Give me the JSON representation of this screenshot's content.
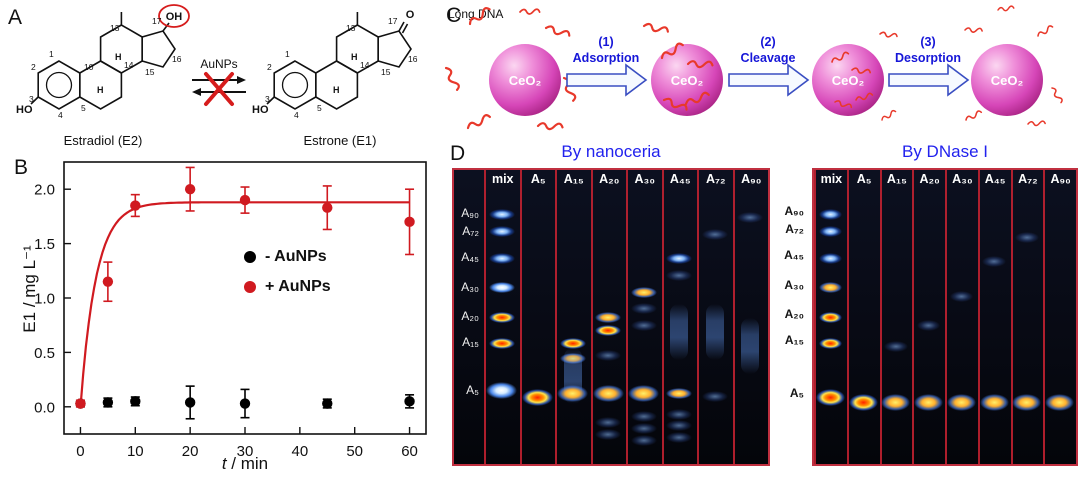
{
  "panel_a": {
    "label": "A",
    "arrow_label": "AuNPs",
    "h": "H",
    "numbers": {
      "n1": "1",
      "n2": "2",
      "n3": "3",
      "n4": "4",
      "n5": "5",
      "n10": "10",
      "n13": "13",
      "n14": "14",
      "n15": "15",
      "n16": "16",
      "n17": "17"
    },
    "left": {
      "name": "Estradiol (E2)",
      "ho": "HO",
      "oh": "OH"
    },
    "right": {
      "name": "Estrone (E1)",
      "ho": "HO",
      "o": "O"
    }
  },
  "panel_b": {
    "label": "B"
  },
  "chart_data": {
    "type": "scatter",
    "xlabel_italic": "t",
    "xlabel_rest": " / min",
    "ylabel": "E1 / mg L⁻¹",
    "xlim": [
      -3,
      63
    ],
    "ylim": [
      -0.25,
      2.25
    ],
    "xticks": [
      0,
      10,
      20,
      30,
      40,
      50,
      60
    ],
    "yticks": [
      0,
      0.5,
      1,
      1.5,
      2
    ],
    "grid": false,
    "legend_position": "middle-right",
    "series": [
      {
        "name": "- AuNPs",
        "color": "#000000",
        "x": [
          0,
          5,
          10,
          20,
          30,
          45,
          60
        ],
        "y": [
          0.03,
          0.04,
          0.05,
          0.04,
          0.03,
          0.03,
          0.05
        ],
        "yerr": [
          0.03,
          0.04,
          0.04,
          0.15,
          0.13,
          0.04,
          0.06
        ]
      },
      {
        "name": "+ AuNPs",
        "color": "#d01a20",
        "x": [
          0,
          5,
          10,
          20,
          30,
          45,
          60
        ],
        "y": [
          0.03,
          1.15,
          1.85,
          2.0,
          1.9,
          1.83,
          1.7
        ],
        "yerr": [
          0.03,
          0.18,
          0.1,
          0.2,
          0.12,
          0.2,
          0.3
        ]
      }
    ],
    "fit_curve": {
      "series": "+ AuNPs",
      "plateau": 1.88,
      "rate": 0.35
    }
  },
  "panel_c": {
    "label": "C",
    "long_dna": "Long DNA",
    "particle": "CeO₂",
    "steps": [
      {
        "num": "(1)",
        "name": "Adsorption"
      },
      {
        "num": "(2)",
        "name": "Cleavage"
      },
      {
        "num": "(3)",
        "name": "Desorption"
      }
    ]
  },
  "panel_d": {
    "label": "D",
    "gels": [
      {
        "title": "By nanoceria",
        "row_labels": [
          {
            "text": "A₉₀",
            "y": 0.15
          },
          {
            "text": "A₇₂",
            "y": 0.21
          },
          {
            "text": "A₄₅",
            "y": 0.3
          },
          {
            "text": "A₃₀",
            "y": 0.4
          },
          {
            "text": "A₂₀",
            "y": 0.5
          },
          {
            "text": "A₁₅",
            "y": 0.59
          },
          {
            "text": "A₅",
            "y": 0.75
          }
        ],
        "lanes": [
          {
            "header": "mix",
            "bands": [
              {
                "y": 0.15,
                "c": "blue"
              },
              {
                "y": 0.21,
                "c": "blue"
              },
              {
                "y": 0.3,
                "c": "blue"
              },
              {
                "y": 0.4,
                "c": "white"
              },
              {
                "y": 0.5,
                "c": "red"
              },
              {
                "y": 0.59,
                "c": "red"
              },
              {
                "y": 0.75,
                "c": "white",
                "s": "big"
              }
            ]
          },
          {
            "header": "A₅",
            "bands": [
              {
                "y": 0.775,
                "c": "red",
                "s": "big"
              }
            ]
          },
          {
            "header": "A₁₅",
            "bands": [
              {
                "y": 0.59,
                "c": "red"
              },
              {
                "y": 0.64,
                "c": "yellow"
              },
              {
                "y": 0.7,
                "c": "smear"
              },
              {
                "y": 0.76,
                "c": "yellow",
                "s": "big"
              }
            ]
          },
          {
            "header": "A₂₀",
            "bands": [
              {
                "y": 0.5,
                "c": "yellow"
              },
              {
                "y": 0.545,
                "c": "red"
              },
              {
                "y": 0.63,
                "c": "faint"
              },
              {
                "y": 0.76,
                "c": "yellow",
                "s": "big"
              },
              {
                "y": 0.86,
                "c": "faint"
              },
              {
                "y": 0.9,
                "c": "faint"
              }
            ]
          },
          {
            "header": "A₃₀",
            "bands": [
              {
                "y": 0.415,
                "c": "yellow"
              },
              {
                "y": 0.47,
                "c": "faint"
              },
              {
                "y": 0.53,
                "c": "faint"
              },
              {
                "y": 0.76,
                "c": "yellow",
                "s": "big"
              },
              {
                "y": 0.84,
                "c": "faint"
              },
              {
                "y": 0.88,
                "c": "faint"
              },
              {
                "y": 0.92,
                "c": "faint"
              }
            ]
          },
          {
            "header": "A₄₅",
            "bands": [
              {
                "y": 0.3,
                "c": "blue"
              },
              {
                "y": 0.36,
                "c": "faint"
              },
              {
                "y": 0.55,
                "c": "smear"
              },
              {
                "y": 0.76,
                "c": "yellow"
              },
              {
                "y": 0.83,
                "c": "faint"
              },
              {
                "y": 0.87,
                "c": "faint"
              },
              {
                "y": 0.91,
                "c": "faint"
              }
            ]
          },
          {
            "header": "A₇₂",
            "bands": [
              {
                "y": 0.22,
                "c": "faint"
              },
              {
                "y": 0.55,
                "c": "smear"
              },
              {
                "y": 0.77,
                "c": "faint"
              }
            ]
          },
          {
            "header": "A₉₀",
            "bands": [
              {
                "y": 0.16,
                "c": "faint"
              },
              {
                "y": 0.6,
                "c": "smear"
              }
            ]
          }
        ]
      },
      {
        "title": "By DNase I",
        "row_labels": [
          {
            "text": "A₉₀",
            "y": 0.15
          },
          {
            "text": "A₇₂",
            "y": 0.21
          },
          {
            "text": "A₄₅",
            "y": 0.3
          },
          {
            "text": "A₃₀",
            "y": 0.4
          },
          {
            "text": "A₂₀",
            "y": 0.5
          },
          {
            "text": "A₁₅",
            "y": 0.59
          },
          {
            "text": "A₅",
            "y": 0.77
          }
        ],
        "lanes": [
          {
            "header": "mix",
            "bands": [
              {
                "y": 0.15,
                "c": "blue"
              },
              {
                "y": 0.21,
                "c": "blue"
              },
              {
                "y": 0.3,
                "c": "blue"
              },
              {
                "y": 0.4,
                "c": "yellow"
              },
              {
                "y": 0.5,
                "c": "red"
              },
              {
                "y": 0.59,
                "c": "red"
              },
              {
                "y": 0.775,
                "c": "red",
                "s": "big"
              }
            ]
          },
          {
            "header": "A₅",
            "bands": [
              {
                "y": 0.79,
                "c": "red",
                "s": "big"
              }
            ]
          },
          {
            "header": "A₁₅",
            "bands": [
              {
                "y": 0.6,
                "c": "faint"
              },
              {
                "y": 0.79,
                "c": "yellow",
                "s": "big"
              }
            ]
          },
          {
            "header": "A₂₀",
            "bands": [
              {
                "y": 0.53,
                "c": "faint"
              },
              {
                "y": 0.79,
                "c": "yellow",
                "s": "big"
              }
            ]
          },
          {
            "header": "A₃₀",
            "bands": [
              {
                "y": 0.43,
                "c": "faint"
              },
              {
                "y": 0.79,
                "c": "yellow",
                "s": "big"
              }
            ]
          },
          {
            "header": "A₄₅",
            "bands": [
              {
                "y": 0.31,
                "c": "faint"
              },
              {
                "y": 0.79,
                "c": "yellow",
                "s": "big"
              }
            ]
          },
          {
            "header": "A₇₂",
            "bands": [
              {
                "y": 0.23,
                "c": "faint"
              },
              {
                "y": 0.79,
                "c": "yellow",
                "s": "big"
              }
            ]
          },
          {
            "header": "A₉₀",
            "bands": [
              {
                "y": 0.79,
                "c": "yellow",
                "s": "big"
              }
            ]
          }
        ]
      }
    ]
  }
}
